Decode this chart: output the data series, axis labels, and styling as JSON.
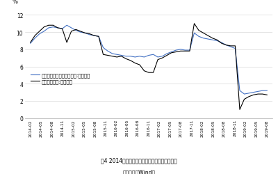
{
  "title1": "图4 2014年以来纺织服装零售额累计同比增速。",
  "title2": "数据来源：Wind。",
  "ylabel": "%",
  "ylim": [
    0,
    13
  ],
  "yticks": [
    0,
    2,
    4,
    6,
    8,
    10,
    12
  ],
  "legend1": "服装鞋帽针纺织品类零售额:累计同比",
  "legend2": "服装类零售额:累计同比",
  "color1": "#4472c4",
  "color2": "#000000",
  "x_labels": [
    "2014-02",
    "2014-05",
    "2014-08",
    "2014-11",
    "2015-02",
    "2015-05",
    "2015-08",
    "2015-11",
    "2016-02",
    "2016-05",
    "2016-08",
    "2016-11",
    "2017-02",
    "2017-05",
    "2017-08",
    "2017-11",
    "2018-02",
    "2018-05",
    "2018-08",
    "2018-11",
    "2019-02",
    "2019-05",
    "2019-08"
  ],
  "series1": [
    8.7,
    9.3,
    9.8,
    10.1,
    10.5,
    10.6,
    10.5,
    10.4,
    10.8,
    10.5,
    10.2,
    10.0,
    9.9,
    9.7,
    9.6,
    9.5,
    8.2,
    7.8,
    7.5,
    7.4,
    7.3,
    7.2,
    7.2,
    7.1,
    7.2,
    7.1,
    7.3,
    7.4,
    7.1,
    7.2,
    7.5,
    7.7,
    7.9,
    8.0,
    7.9,
    7.9,
    9.9,
    9.5,
    9.3,
    9.2,
    9.1,
    9.0,
    8.8,
    8.5,
    8.3,
    8.1,
    3.2,
    2.8,
    2.9,
    3.0,
    3.1,
    3.2,
    3.2
  ],
  "series2": [
    8.8,
    9.6,
    10.1,
    10.6,
    10.8,
    10.8,
    10.5,
    10.4,
    8.8,
    10.1,
    10.3,
    10.1,
    9.9,
    9.8,
    9.6,
    9.5,
    7.4,
    7.3,
    7.2,
    7.1,
    7.2,
    6.9,
    6.7,
    6.4,
    6.2,
    5.5,
    5.3,
    5.3,
    6.8,
    7.0,
    7.3,
    7.6,
    7.7,
    7.8,
    7.8,
    7.8,
    11.0,
    10.2,
    9.9,
    9.6,
    9.3,
    9.1,
    8.7,
    8.5,
    8.4,
    8.4,
    1.0,
    2.2,
    2.5,
    2.7,
    2.8,
    2.8,
    2.7
  ]
}
